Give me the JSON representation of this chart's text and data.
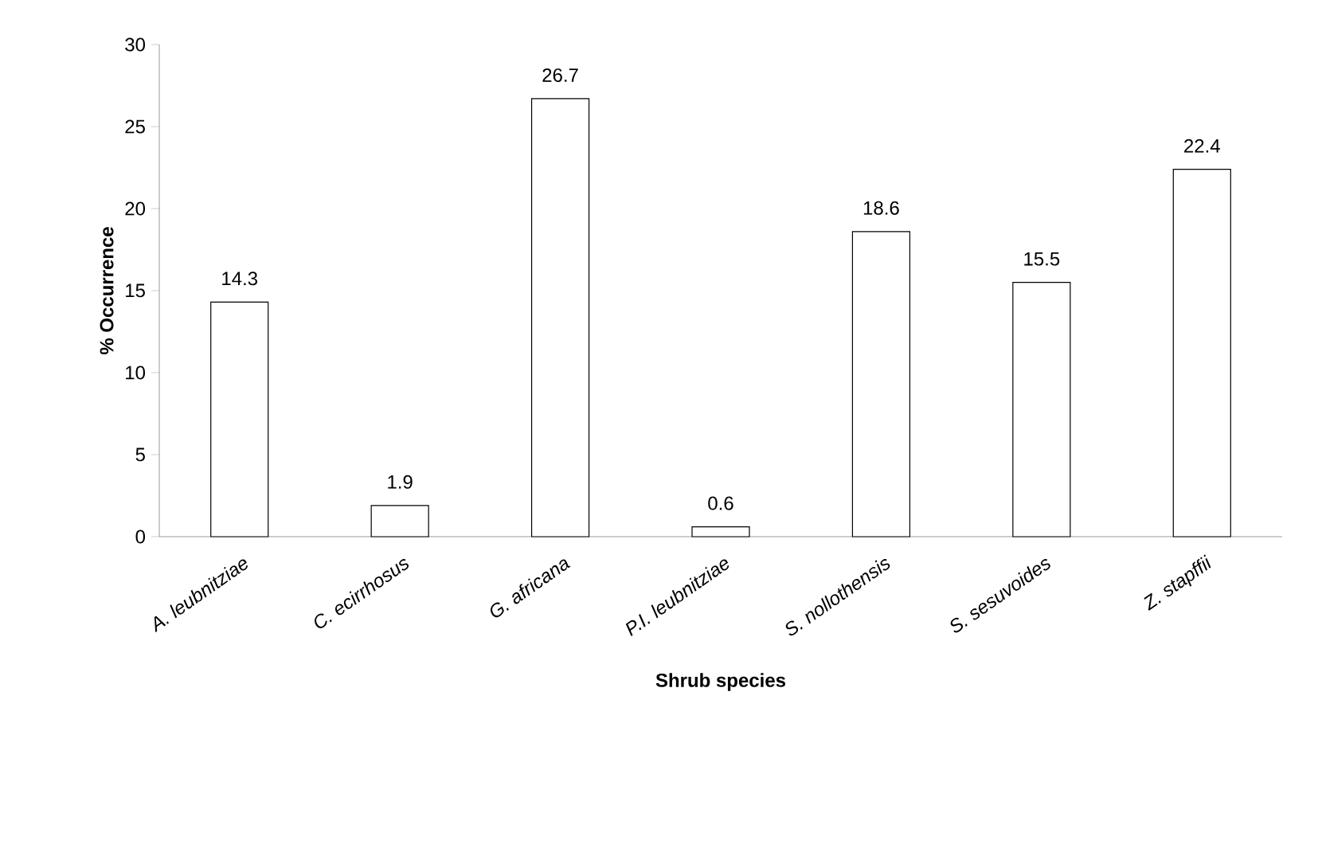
{
  "chart_data": {
    "type": "bar",
    "xlabel": "Shrub species",
    "ylabel": "% Occurrence",
    "categories": [
      "A. leubnitziae",
      "C. ecirrhosus",
      "G. africana",
      "P.I. leubnitziae",
      "S. nollothensis",
      "S. sesuvoides",
      "Z. stapffii"
    ],
    "values": [
      14.3,
      1.9,
      26.7,
      0.6,
      18.6,
      15.5,
      22.4
    ],
    "color": "#ffffff",
    "ylim": [
      0,
      30
    ],
    "yticks": [
      0,
      5,
      10,
      15,
      20,
      25,
      30
    ],
    "grid": false,
    "data_labels": true
  }
}
